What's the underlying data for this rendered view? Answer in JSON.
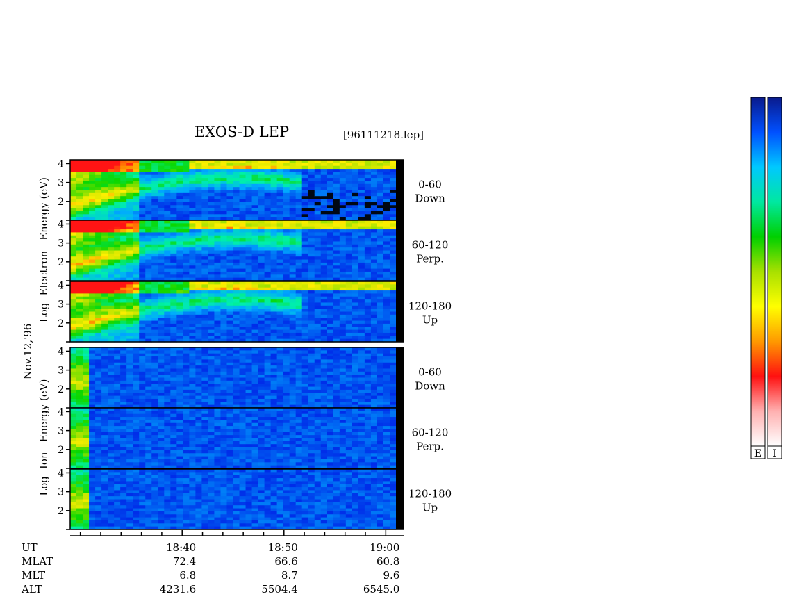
{
  "title": "EXOS-D LEP",
  "file_label": "[96111218.lep]",
  "date_label": "Nov.12,'96",
  "electron_ylabel": [
    "Log",
    "Electron",
    "Energy (eV)"
  ],
  "ion_ylabel": [
    "Log",
    "Ion",
    "Energy (eV)"
  ],
  "colorbars": [
    {
      "label": "E",
      "colors": [
        "#0a1a8c",
        "#0050ff",
        "#00c8ff",
        "#00e8a0",
        "#00d000",
        "#a8e000",
        "#ffff00",
        "#ff9900",
        "#ff1010",
        "#ffb0b0",
        "#ffffff"
      ]
    },
    {
      "label": "I",
      "colors": [
        "#0a1a8c",
        "#0050ff",
        "#00c8ff",
        "#00e8a0",
        "#00d000",
        "#a8e000",
        "#ffff00",
        "#ff9900",
        "#ff1010",
        "#ffb0b0",
        "#ffffff"
      ]
    }
  ],
  "chart_data": {
    "type": "heatmap",
    "panels": [
      {
        "species": "Electron",
        "pitch_angle": "0-60",
        "direction": "Down",
        "yticks": [
          "4",
          "3",
          "2"
        ],
        "ylim": [
          1,
          4.2
        ]
      },
      {
        "species": "Electron",
        "pitch_angle": "60-120",
        "direction": "Perp.",
        "yticks": [
          "4",
          "3",
          "2"
        ],
        "ylim": [
          1,
          4.2
        ]
      },
      {
        "species": "Electron",
        "pitch_angle": "120-180",
        "direction": "Up",
        "yticks": [
          "4",
          "3",
          "2"
        ],
        "ylim": [
          1,
          4.2
        ]
      },
      {
        "species": "Ion",
        "pitch_angle": "0-60",
        "direction": "Down",
        "yticks": [
          "4",
          "3",
          "2"
        ],
        "ylim": [
          1,
          4.2
        ]
      },
      {
        "species": "Ion",
        "pitch_angle": "60-120",
        "direction": "Perp.",
        "yticks": [
          "4",
          "3",
          "2"
        ],
        "ylim": [
          1,
          4.2
        ]
      },
      {
        "species": "Ion",
        "pitch_angle": "120-180",
        "direction": "Up",
        "yticks": [
          "4",
          "3",
          "2"
        ],
        "ylim": [
          1,
          4.2
        ]
      }
    ],
    "x_time_range_min": [
      1109,
      1141
    ],
    "x_labeled_ticks_min": [
      1120,
      1130,
      1140
    ],
    "x_minor_tick_step_min": 2,
    "rows": [
      {
        "label": "UT",
        "values": [
          "18:40",
          "18:50",
          "19:00"
        ]
      },
      {
        "label": "MLAT",
        "values": [
          "72.4",
          "66.6",
          "60.8"
        ]
      },
      {
        "label": "MLT",
        "values": [
          "6.8",
          "8.7",
          "9.6"
        ]
      },
      {
        "label": "ALT",
        "values": [
          "4231.6",
          "5504.4",
          "6545.0"
        ]
      }
    ]
  }
}
